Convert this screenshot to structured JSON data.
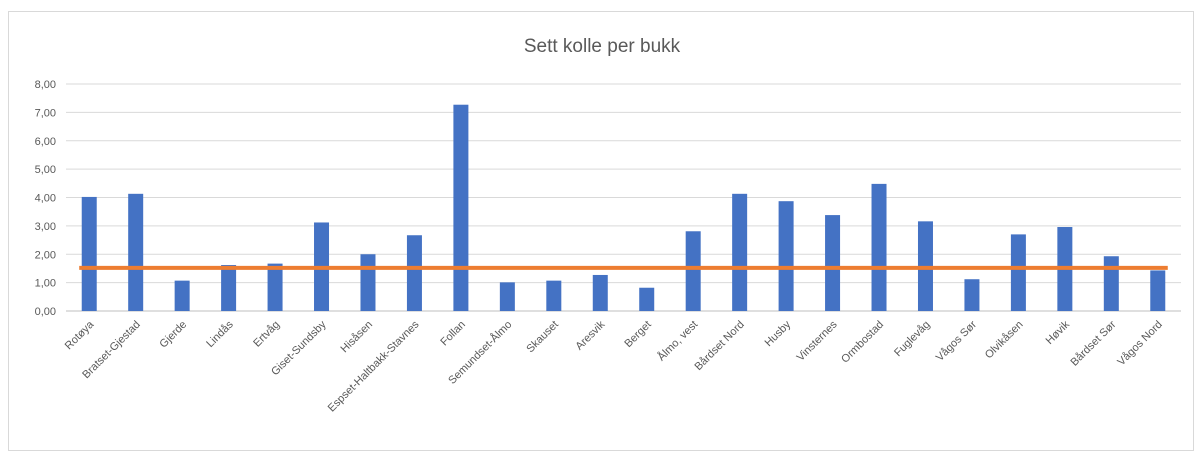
{
  "chart_data": {
    "type": "bar",
    "title": "Sett kolle per bukk",
    "categories": [
      "Rotøya",
      "Bratset-Gjestad",
      "Gjerde",
      "Lindås",
      "Ertvåg",
      "Giset-Sundsby",
      "Hisåsen",
      "Espset-Haltbakk-Stavnes",
      "Follan",
      "Semundset-Ålmo",
      "Skauset",
      "Aresvik",
      "Berget",
      "Ålmo, vest",
      "Bårdset Nord",
      "Husby",
      "Vinsternes",
      "Ormbostad",
      "Fuglevåg",
      "Vågos Sør",
      "Olvikåsen",
      "Høvik",
      "Bårdset Sør",
      "Vågos Nord"
    ],
    "series": [
      {
        "type": "bar",
        "color": "#4472c4",
        "values": [
          4.02,
          4.13,
          1.07,
          1.62,
          1.67,
          3.12,
          2.0,
          2.67,
          7.27,
          1.01,
          1.07,
          1.27,
          0.82,
          2.81,
          4.13,
          3.87,
          3.38,
          4.48,
          3.16,
          1.12,
          2.7,
          2.96,
          1.93,
          1.43
        ]
      },
      {
        "type": "line",
        "color": "#ed7d31",
        "values": [
          1.52,
          1.52,
          1.52,
          1.52,
          1.52,
          1.52,
          1.52,
          1.52,
          1.52,
          1.52,
          1.52,
          1.52,
          1.52,
          1.52,
          1.52,
          1.52,
          1.52,
          1.52,
          1.52,
          1.52,
          1.52,
          1.52,
          1.52,
          1.52
        ]
      }
    ],
    "ylim": [
      0,
      8
    ],
    "yticks": [
      "0,00",
      "1,00",
      "2,00",
      "3,00",
      "4,00",
      "5,00",
      "6,00",
      "7,00",
      "8,00"
    ],
    "grid": true,
    "legend": "none",
    "xlabel": "",
    "ylabel": ""
  }
}
